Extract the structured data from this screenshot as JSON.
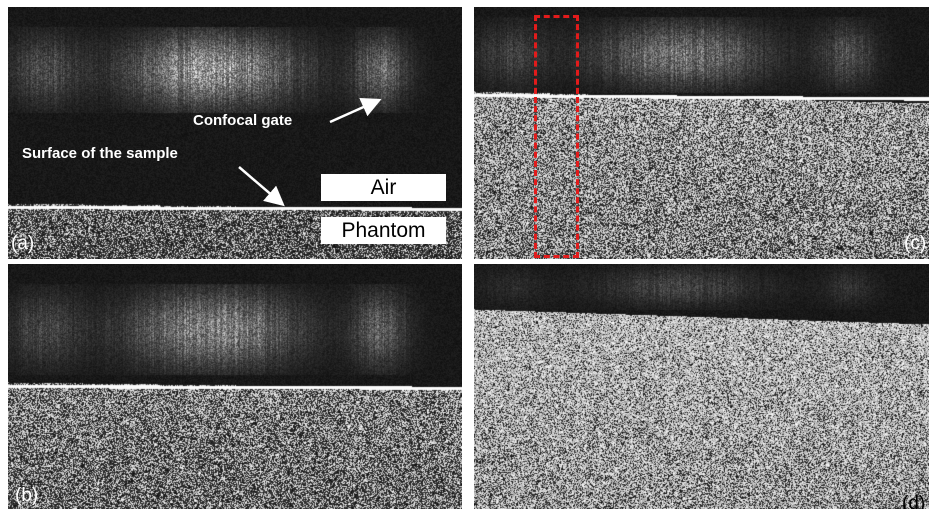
{
  "panels": [
    {
      "id": "a",
      "label": "(a)",
      "gate_intensity": 0.9,
      "sample_intensity": 0.45,
      "interface_line": true
    },
    {
      "id": "b",
      "label": "(b)",
      "gate_intensity": 0.8,
      "sample_intensity": 0.6,
      "interface_line": true
    },
    {
      "id": "c",
      "label": "(c)",
      "gate_intensity": 0.65,
      "sample_intensity": 0.75,
      "interface_line": true
    },
    {
      "id": "d",
      "label": "(d)",
      "gate_intensity": 0.3,
      "sample_intensity": 0.92,
      "interface_line": false
    }
  ],
  "annotations": {
    "confocal_gate": "Confocal gate",
    "surface": "Surface of the sample",
    "air": "Air",
    "phantom": "Phantom"
  },
  "colors": {
    "background": "#ffffff",
    "roi_box": "#e21b1b",
    "annotation_text": "#ffffff"
  }
}
